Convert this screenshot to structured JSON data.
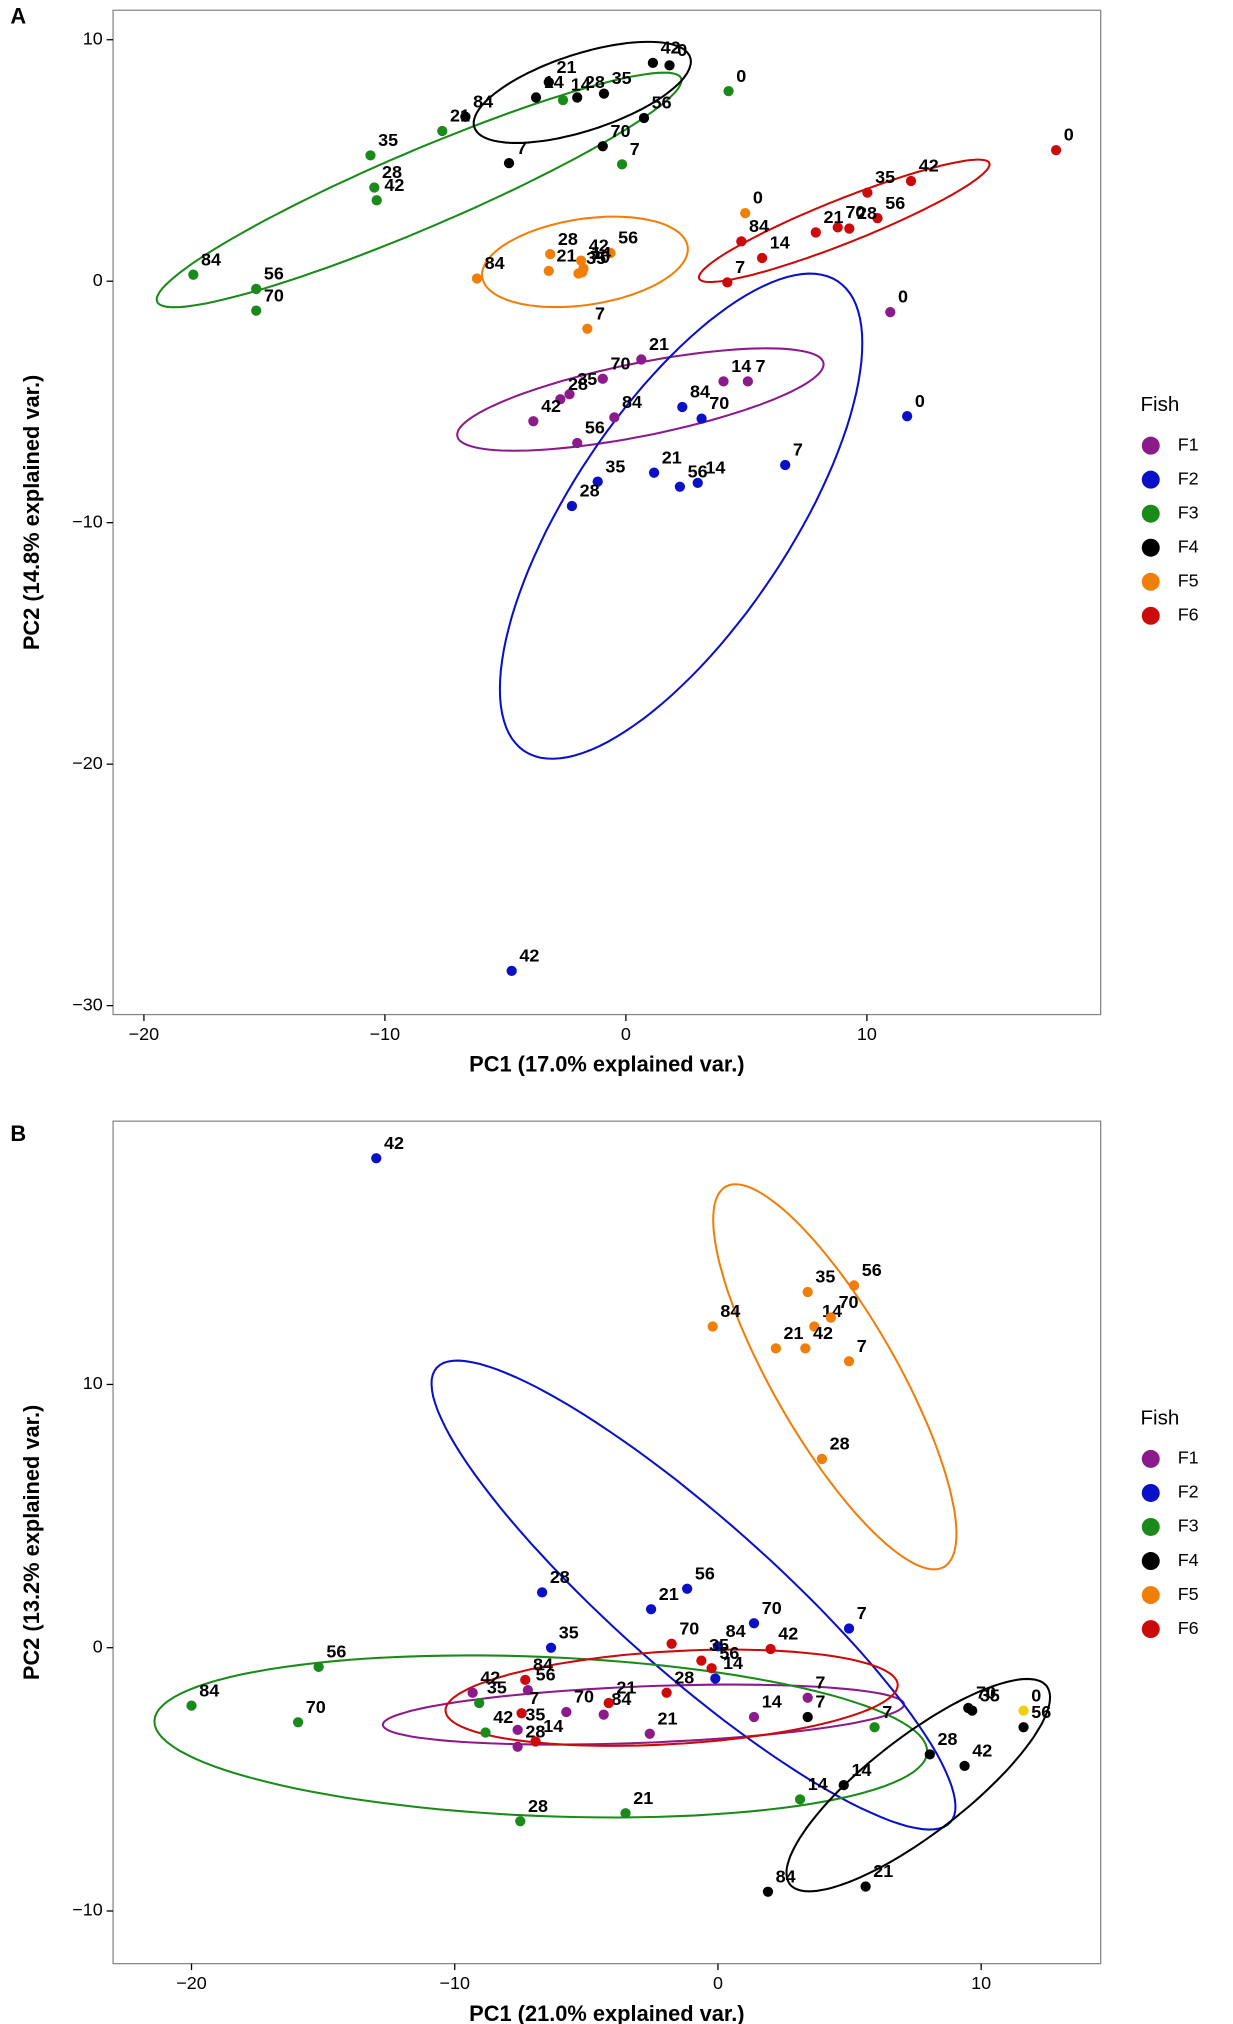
{
  "chart_data": [
    {
      "type": "scatter",
      "panel": "A",
      "xlabel": "PC1 (17.0% explained var.)",
      "ylabel": "PC2 (14.8% explained var.)",
      "xlim": [
        -21.28,
        19.7
      ],
      "ylim": [
        -30.37,
        11.22
      ],
      "xticks": [
        {
          "value": -20,
          "label": "−20"
        },
        {
          "value": -10,
          "label": "−10"
        },
        0,
        10
      ],
      "yticks": [
        {
          "value": -30,
          "label": "−30"
        },
        {
          "value": -20,
          "label": "−20"
        },
        {
          "value": -10,
          "label": "−10"
        },
        0,
        10
      ],
      "legend_title": "Fish",
      "series": [
        {
          "name": "F1",
          "color": "#8b1a8b",
          "labels": [
            "0",
            "7",
            "14",
            "21",
            "70",
            "84",
            "35",
            "28",
            "42",
            "56"
          ],
          "x": [
            10.97,
            5.06,
            4.05,
            0.64,
            -0.96,
            -0.48,
            -2.34,
            -2.72,
            -3.84,
            -2.02
          ],
          "values": [
            -1.28,
            -4.15,
            -4.15,
            -3.24,
            -4.04,
            -5.64,
            -4.68,
            -4.89,
            -5.8,
            -6.7
          ],
          "ellipse": {
            "center": [
              0.6,
              -4.9
            ],
            "axis1": [
              7.6,
              1.5
            ],
            "axis2": [
              0.2,
              -1.5
            ]
          }
        },
        {
          "name": "F2",
          "color": "#0a10c8",
          "labels": [
            "0",
            "7",
            "84",
            "70",
            "21",
            "56",
            "14",
            "35",
            "28",
            "42"
          ],
          "x": [
            11.67,
            6.61,
            2.34,
            3.14,
            1.17,
            2.24,
            2.98,
            -1.17,
            -2.24,
            -4.74
          ],
          "values": [
            -5.59,
            -7.61,
            -5.21,
            -5.69,
            -7.93,
            -8.51,
            -8.35,
            -8.3,
            -9.31,
            -28.56
          ],
          "ellipse": {
            "center": [
              2.29,
              -9.73
            ],
            "axis1": [
              6.5,
              9.73
            ],
            "axis2": [
              3.78,
              -2.5
            ]
          }
        },
        {
          "name": "F3",
          "color": "#1a8a1a",
          "labels": [
            "0",
            "35",
            "21",
            "28",
            "42",
            "14",
            "7",
            "84",
            "56",
            "70"
          ],
          "x": [
            4.26,
            -10.6,
            -7.62,
            -10.44,
            -10.34,
            -2.61,
            -0.16,
            -17.95,
            -15.34,
            -15.34
          ],
          "values": [
            7.87,
            5.21,
            6.22,
            3.88,
            3.35,
            7.5,
            4.84,
            0.27,
            -0.32,
            -1.22
          ],
          "ellipse": {
            "center": [
              -8.58,
              3.78
            ],
            "axis1": [
              10.87,
              4.63
            ],
            "axis2": [
              0.63,
              -1.47
            ]
          }
        },
        {
          "name": "F4",
          "color": "#000000",
          "labels": [
            "0",
            "42",
            "21",
            "28",
            "35",
            "14",
            "84",
            "56",
            "70",
            "7"
          ],
          "x": [
            1.81,
            1.12,
            -3.2,
            -2.02,
            -0.91,
            -3.73,
            -6.66,
            0.75,
            -0.96,
            -4.85
          ],
          "values": [
            8.94,
            9.04,
            8.24,
            7.61,
            7.77,
            7.61,
            6.81,
            6.76,
            5.59,
            4.89
          ],
          "ellipse": {
            "center": [
              -1.81,
              7.82
            ],
            "axis1": [
              4.48,
              1.44
            ],
            "axis2": [
              0.47,
              -1.52
            ]
          }
        },
        {
          "name": "F5",
          "color": "#f07f0a",
          "labels": [
            "0",
            "28",
            "42",
            "56",
            "14",
            "84",
            "21",
            "35",
            "70",
            "7"
          ],
          "x": [
            4.95,
            -3.14,
            -1.86,
            -0.64,
            -1.76,
            -6.18,
            -3.2,
            -1.97,
            -1.81,
            -1.6
          ],
          "values": [
            2.82,
            1.12,
            0.85,
            1.17,
            0.53,
            0.11,
            0.43,
            0.32,
            0.37,
            -1.97
          ],
          "ellipse": {
            "center": [
              -1.7,
              0.8
            ],
            "axis1": [
              4.26,
              0.64
            ],
            "axis2": [
              0.27,
              -1.76
            ]
          }
        },
        {
          "name": "F6",
          "color": "#cc0a0a",
          "labels": [
            "0",
            "42",
            "35",
            "56",
            "70",
            "28",
            "21",
            "84",
            "14",
            "7"
          ],
          "x": [
            17.85,
            11.83,
            10.02,
            10.44,
            8.79,
            9.27,
            7.88,
            4.79,
            5.65,
            4.21
          ],
          "values": [
            5.43,
            4.15,
            3.67,
            2.61,
            2.23,
            2.18,
            2.02,
            1.65,
            0.96,
            -0.05
          ],
          "ellipse": {
            "center": [
              9.06,
              2.5
            ],
            "axis1": [
              6.02,
              2.39
            ],
            "axis2": [
              0.34,
              -0.84
            ]
          }
        }
      ]
    },
    {
      "type": "scatter",
      "panel": "B",
      "xlabel": "PC1 (21.0% explained var.)",
      "ylabel": "PC2 (13.2% explained var.)",
      "xlim": [
        -22.98,
        14.54
      ],
      "ylim": [
        -12.0,
        20.0
      ],
      "xticks": [
        {
          "value": -20,
          "label": "−20"
        },
        {
          "value": -10,
          "label": "−10"
        },
        0,
        10
      ],
      "yticks": [
        {
          "value": -10,
          "label": "−10"
        },
        0,
        10
      ],
      "legend_title": "Fish",
      "series": [
        {
          "name": "F1",
          "color": "#8b1a8b",
          "labels": [
            "7",
            "14",
            "21",
            "84",
            "70",
            "56",
            "42",
            "35",
            "28"
          ],
          "x": [
            3.41,
            1.37,
            -2.59,
            -4.34,
            -5.76,
            -7.22,
            -9.32,
            -7.61,
            -7.61
          ],
          "values": [
            -1.9,
            -2.63,
            -3.27,
            -2.54,
            -2.44,
            -1.61,
            -1.71,
            -3.12,
            -3.76
          ],
          "ellipse": {
            "center": [
              -2.83,
              -2.54
            ],
            "axis1": [
              9.9,
              0.39
            ],
            "axis2": [
              0.04,
              -1.07
            ]
          }
        },
        {
          "name": "F2",
          "color": "#0a10c8",
          "labels": [
            "42",
            "28",
            "21",
            "56",
            "70",
            "7",
            "84",
            "35",
            "14"
          ],
          "x": [
            -12.98,
            -6.68,
            -2.54,
            -1.17,
            1.37,
            4.98,
            0,
            -6.34,
            -0.1
          ],
          "values": [
            18.59,
            2.1,
            1.46,
            2.24,
            0.93,
            0.73,
            0.05,
            0,
            -1.17
          ],
          "ellipse": {
            "center": [
              -0.93,
              2.0
            ],
            "axis1": [
              -9.76,
              8.63
            ],
            "axis2": [
              1.95,
              2.2
            ]
          }
        },
        {
          "name": "F3",
          "color": "#1a8a1a",
          "labels": [
            "56",
            "84",
            "70",
            "35",
            "42",
            "28",
            "21",
            "14",
            "7"
          ],
          "x": [
            -15.17,
            -20.0,
            -15.95,
            -9.07,
            -8.83,
            -7.51,
            -3.51,
            3.12,
            5.95
          ],
          "values": [
            -0.73,
            -2.2,
            -2.83,
            -2.1,
            -3.22,
            -6.59,
            -6.29,
            -5.76,
            -3.02
          ],
          "ellipse": {
            "center": [
              -6.73,
              -3.37
            ],
            "axis1": [
              14.68,
              -0.59
            ],
            "axis2": [
              -0.1,
              -3.02
            ]
          }
        },
        {
          "name": "F4",
          "color": "#000000",
          "labels": [
            "70",
            "35",
            "28",
            "56",
            "42",
            "14",
            "7",
            "84",
            "21"
          ],
          "x": [
            9.51,
            9.66,
            8.05,
            11.61,
            9.37,
            4.78,
            3.41,
            1.9,
            5.61
          ],
          "values": [
            -2.29,
            -2.39,
            -4.05,
            -3.02,
            -4.49,
            -5.22,
            -2.63,
            -9.27,
            -9.07
          ],
          "ellipse": {
            "center": [
              7.61,
              -5.22
            ],
            "axis1": [
              4.88,
              3.76
            ],
            "axis2": [
              1.12,
              -1.46
            ]
          }
        },
        {
          "name": "F5",
          "color": "#f07f0a",
          "labels": [
            "35",
            "56",
            "84",
            "14",
            "70",
            "21",
            "42",
            "7",
            "28",
            "0"
          ],
          "point_colors": [
            "#f07f0a",
            "#f07f0a",
            "#f07f0a",
            "#f07f0a",
            "#f07f0a",
            "#f07f0a",
            "#f07f0a",
            "#f07f0a",
            "#f07f0a",
            "#f0d000"
          ],
          "x": [
            3.41,
            5.17,
            -0.2,
            3.66,
            4.29,
            2.2,
            3.32,
            4.98,
            3.95,
            11.61
          ],
          "values": [
            13.51,
            13.76,
            12.2,
            12.2,
            12.54,
            11.37,
            11.37,
            10.88,
            7.17,
            -2.39
          ],
          "ellipse": {
            "center": [
              4.44,
              10.29
            ],
            "axis1": [
              4.15,
              -7.22
            ],
            "axis2": [
              2.03,
              1.17
            ]
          }
        },
        {
          "name": "F6",
          "color": "#cc0a0a",
          "labels": [
            "70",
            "42",
            "35",
            "56",
            "84",
            "7",
            "14",
            "21",
            "28"
          ],
          "x": [
            -1.76,
            2.0,
            -0.63,
            -0.24,
            -7.32,
            -7.46,
            -6.93,
            -4.15,
            -1.95
          ],
          "values": [
            0.15,
            -0.05,
            -0.49,
            -0.78,
            -1.22,
            -2.49,
            -3.56,
            -2.1,
            -1.71
          ],
          "ellipse": {
            "center": [
              -1.76,
              -1.9
            ],
            "axis1": [
              8.59,
              0.49
            ],
            "axis2": [
              0.05,
              -1.76
            ]
          }
        }
      ]
    }
  ]
}
